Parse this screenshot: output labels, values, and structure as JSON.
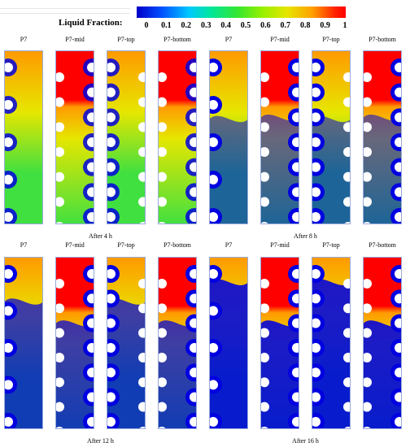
{
  "colorbar": {
    "title": "Liquid Fraction:",
    "ticks": [
      "0",
      "0.1",
      "0.2",
      "0.3",
      "0.4",
      "0.5",
      "0.6",
      "0.7",
      "0.8",
      "0.9",
      "1"
    ]
  },
  "groups": [
    {
      "time_label": "After 4 h",
      "panels": [
        "P7",
        "P7-mid",
        "P7-top",
        "P7-bottom"
      ]
    },
    {
      "time_label": "After 8 h",
      "panels": [
        "P7",
        "P7-mid",
        "P7-top",
        "P7-bottom"
      ]
    },
    {
      "time_label": "After 12 h",
      "panels": [
        "P7",
        "P7-mid",
        "P7-top",
        "P7-bottom"
      ]
    },
    {
      "time_label": "After 16 h",
      "panels": [
        "P7",
        "P7-mid",
        "P7-top",
        "P7-bottom"
      ]
    }
  ],
  "colors": {
    "solid": "#0000e0",
    "mushy": "#00e080",
    "liquid": "#ff0000",
    "warm": "#ff9a00",
    "yellow": "#e6e600",
    "green": "#40e040"
  }
}
